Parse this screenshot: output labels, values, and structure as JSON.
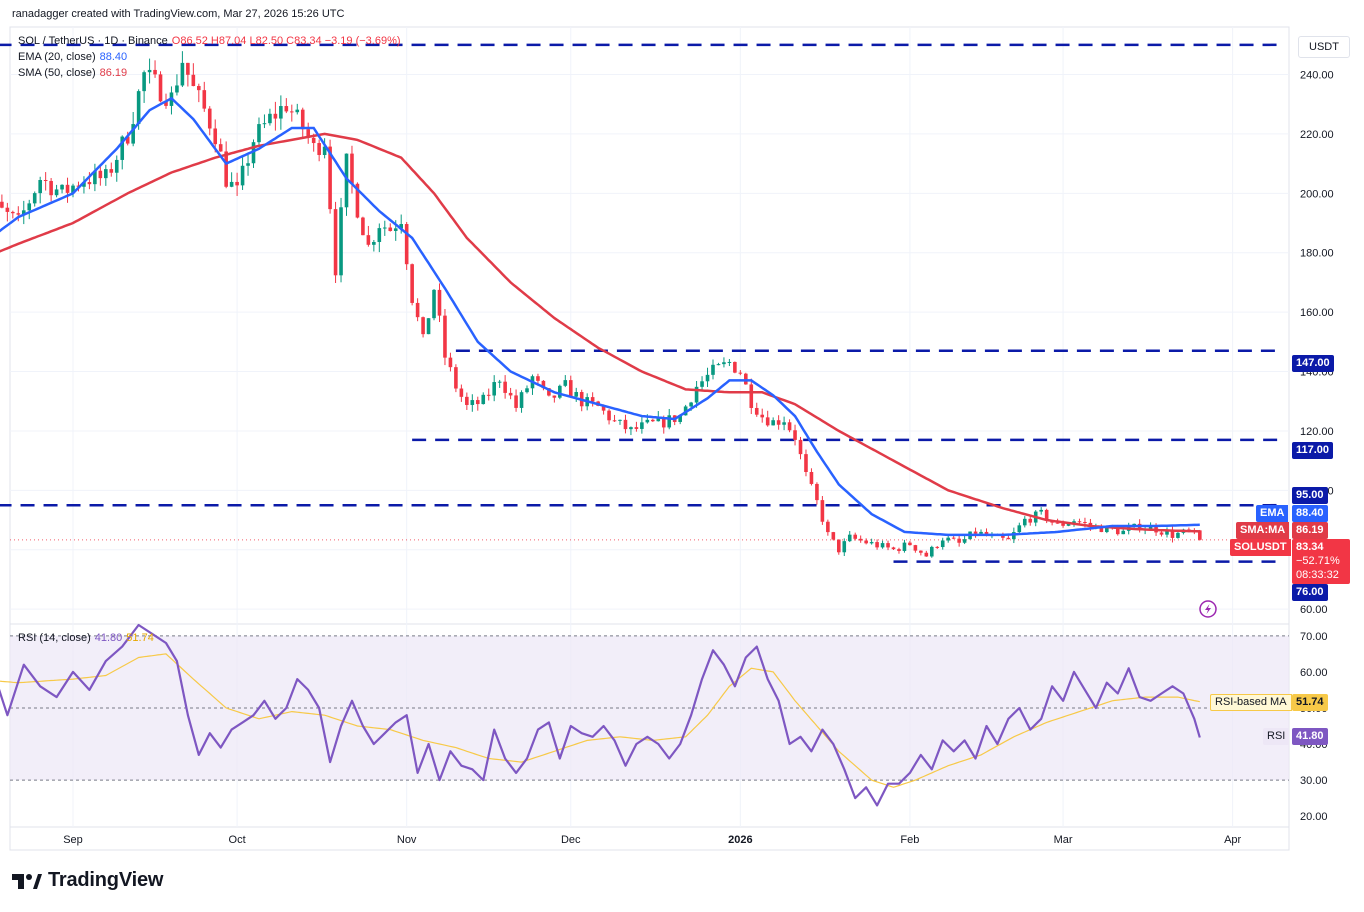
{
  "header": {
    "created_text": "ranadagger created with TradingView.com, Mar 27, 2026 15:26 UTC"
  },
  "legend": {
    "symbol": "SOL / TetherUS · 1D · Binance",
    "ohlc": "O86.52 H87.04 L82.50 C83.34 −3.19 (−3.69%)",
    "ema_label": "EMA (20, close)",
    "ema_value": "88.40",
    "sma_label": "SMA (50, close)",
    "sma_value": "86.19",
    "rsi_label": "RSI (14, close)",
    "rsi_value": "41.80",
    "rsi_ma_value": "51.74"
  },
  "currency_button": "USDT",
  "price_tags": {
    "p95": "95.00",
    "ema_tag": "EMA",
    "ema_value": "88.40",
    "sma_tag": "SMA:MA",
    "sma_value": "86.19",
    "symbol_tag": "SOLUSDT",
    "last": "83.34",
    "change": "−52.71%",
    "countdown": "08:33:32",
    "p76": "76.00",
    "p117": "117.00",
    "p147": "147.00"
  },
  "rsi_tags": {
    "ma_label": "RSI-based MA",
    "ma_value": "51.74",
    "rsi_label": "RSI",
    "rsi_value": "41.80"
  },
  "footer": {
    "brand": "TradingView"
  },
  "colors": {
    "up": "#089981",
    "down": "#f23645",
    "ema": "#2962ff",
    "sma": "#e03b48",
    "level": "#0b1aa8",
    "rsi": "#7e57c2",
    "rsi_ma": "#f7c948",
    "rsi_band": "#ede7f6"
  },
  "chart_data": [
    {
      "type": "candlestick",
      "title": "SOL / TetherUS · 1D · Binance",
      "y_axis_ticks": [
        60,
        80,
        100,
        120,
        140,
        160,
        180,
        200,
        220,
        240
      ],
      "y_axis_tick_labels": [
        "60.00",
        "80.00",
        "100.00",
        "120.00",
        "140.00",
        "160.00",
        "180.00",
        "200.00",
        "220.00",
        "240.00"
      ],
      "ylim": [
        55,
        256
      ],
      "x_tick_labels": [
        "Sep",
        "Oct",
        "Nov",
        "Dec",
        "2026",
        "Feb",
        "Mar",
        "Apr"
      ],
      "x_tick_days": [
        0,
        30,
        61,
        91,
        122,
        153,
        181,
        212
      ],
      "first_candle_day": -18,
      "last_candle_day": 206,
      "horizontal_levels": [
        250,
        147,
        117,
        95,
        76
      ],
      "level_labels": [
        "147.00",
        "117.00",
        "95.00",
        "76.00"
      ],
      "close_anchors": [
        [
          -18,
          180
        ],
        [
          -14,
          195
        ],
        [
          -10,
          190
        ],
        [
          -6,
          205
        ],
        [
          -2,
          200
        ],
        [
          2,
          205
        ],
        [
          6,
          205
        ],
        [
          10,
          220
        ],
        [
          13,
          240
        ],
        [
          16,
          235
        ],
        [
          18,
          232
        ],
        [
          20,
          245
        ],
        [
          22,
          235
        ],
        [
          24,
          228
        ],
        [
          26,
          220
        ],
        [
          28,
          205
        ],
        [
          30,
          200
        ],
        [
          33,
          218
        ],
        [
          36,
          225
        ],
        [
          39,
          230
        ],
        [
          42,
          222
        ],
        [
          44,
          215
        ],
        [
          46,
          218
        ],
        [
          48,
          175
        ],
        [
          50,
          210
        ],
        [
          52,
          195
        ],
        [
          54,
          182
        ],
        [
          56,
          190
        ],
        [
          58,
          188
        ],
        [
          60,
          192
        ],
        [
          62,
          165
        ],
        [
          64,
          150
        ],
        [
          66,
          168
        ],
        [
          68,
          145
        ],
        [
          70,
          135
        ],
        [
          72,
          128
        ],
        [
          75,
          130
        ],
        [
          78,
          138
        ],
        [
          81,
          128
        ],
        [
          84,
          138
        ],
        [
          87,
          130
        ],
        [
          90,
          135
        ],
        [
          93,
          130
        ],
        [
          96,
          128
        ],
        [
          99,
          123
        ],
        [
          102,
          120
        ],
        [
          105,
          122
        ],
        [
          108,
          123
        ],
        [
          111,
          125
        ],
        [
          114,
          135
        ],
        [
          117,
          140
        ],
        [
          120,
          143
        ],
        [
          122,
          140
        ],
        [
          124,
          130
        ],
        [
          126,
          125
        ],
        [
          128,
          123
        ],
        [
          130,
          124
        ],
        [
          132,
          118
        ],
        [
          134,
          105
        ],
        [
          136,
          96
        ],
        [
          138,
          85
        ],
        [
          140,
          80
        ],
        [
          142,
          84
        ],
        [
          146,
          82
        ],
        [
          150,
          80
        ],
        [
          153,
          82
        ],
        [
          156,
          78
        ],
        [
          159,
          84
        ],
        [
          162,
          82
        ],
        [
          165,
          86
        ],
        [
          168,
          84
        ],
        [
          171,
          83
        ],
        [
          174,
          90
        ],
        [
          177,
          92
        ],
        [
          180,
          88
        ],
        [
          183,
          90
        ],
        [
          186,
          88
        ],
        [
          189,
          87
        ],
        [
          192,
          86
        ],
        [
          195,
          88
        ],
        [
          198,
          87
        ],
        [
          201,
          85
        ],
        [
          204,
          86
        ],
        [
          206,
          83.34
        ]
      ],
      "ema_anchors": [
        [
          -18,
          181
        ],
        [
          -10,
          192
        ],
        [
          0,
          200
        ],
        [
          8,
          215
        ],
        [
          14,
          228
        ],
        [
          18,
          232
        ],
        [
          22,
          225
        ],
        [
          28,
          210
        ],
        [
          34,
          215
        ],
        [
          40,
          222
        ],
        [
          44,
          222
        ],
        [
          50,
          205
        ],
        [
          56,
          194
        ],
        [
          62,
          185
        ],
        [
          68,
          168
        ],
        [
          74,
          150
        ],
        [
          80,
          140
        ],
        [
          88,
          133
        ],
        [
          96,
          129
        ],
        [
          104,
          125
        ],
        [
          110,
          124
        ],
        [
          116,
          131
        ],
        [
          120,
          137
        ],
        [
          124,
          137
        ],
        [
          128,
          132
        ],
        [
          132,
          125
        ],
        [
          136,
          113
        ],
        [
          140,
          102
        ],
        [
          146,
          92
        ],
        [
          152,
          86
        ],
        [
          160,
          85
        ],
        [
          170,
          85
        ],
        [
          180,
          86
        ],
        [
          190,
          88
        ],
        [
          198,
          88
        ],
        [
          206,
          88.4
        ]
      ],
      "sma_anchors": [
        [
          -18,
          177
        ],
        [
          -10,
          183
        ],
        [
          0,
          190
        ],
        [
          10,
          200
        ],
        [
          18,
          207
        ],
        [
          26,
          212
        ],
        [
          34,
          216
        ],
        [
          40,
          218
        ],
        [
          46,
          220
        ],
        [
          52,
          218
        ],
        [
          60,
          212
        ],
        [
          66,
          200
        ],
        [
          72,
          185
        ],
        [
          80,
          170
        ],
        [
          88,
          158
        ],
        [
          96,
          148
        ],
        [
          104,
          140
        ],
        [
          112,
          134
        ],
        [
          120,
          133
        ],
        [
          126,
          133
        ],
        [
          132,
          129
        ],
        [
          140,
          120
        ],
        [
          150,
          110
        ],
        [
          160,
          100
        ],
        [
          170,
          94
        ],
        [
          178,
          90
        ],
        [
          186,
          88
        ],
        [
          194,
          87
        ],
        [
          200,
          86.5
        ],
        [
          206,
          86.19
        ]
      ]
    },
    {
      "type": "line",
      "title": "RSI (14, close)",
      "series": [
        {
          "name": "RSI",
          "last_value": 41.8
        },
        {
          "name": "RSI-based MA",
          "last_value": 51.74
        }
      ],
      "y_axis_ticks": [
        20,
        30,
        40,
        50,
        60,
        70
      ],
      "y_axis_tick_labels": [
        "20.00",
        "30.00",
        "40.00",
        "50.00",
        "60.00",
        "70.00"
      ],
      "ylim": [
        17,
        73
      ],
      "band": [
        30,
        70
      ],
      "midline": 50,
      "rsi_anchors": [
        [
          -18,
          55
        ],
        [
          -15,
          62
        ],
        [
          -12,
          48
        ],
        [
          -9,
          62
        ],
        [
          -6,
          56
        ],
        [
          -3,
          53
        ],
        [
          0,
          60
        ],
        [
          3,
          55
        ],
        [
          6,
          63
        ],
        [
          9,
          67
        ],
        [
          12,
          73
        ],
        [
          15,
          70
        ],
        [
          17,
          68
        ],
        [
          19,
          63
        ],
        [
          21,
          48
        ],
        [
          23,
          37
        ],
        [
          25,
          43
        ],
        [
          27,
          39
        ],
        [
          29,
          44
        ],
        [
          31,
          46
        ],
        [
          33,
          48
        ],
        [
          35,
          52
        ],
        [
          37,
          47
        ],
        [
          39,
          50
        ],
        [
          41,
          58
        ],
        [
          43,
          55
        ],
        [
          45,
          50
        ],
        [
          47,
          35
        ],
        [
          49,
          45
        ],
        [
          51,
          52
        ],
        [
          53,
          45
        ],
        [
          55,
          40
        ],
        [
          57,
          43
        ],
        [
          59,
          46
        ],
        [
          61,
          48
        ],
        [
          63,
          32
        ],
        [
          65,
          40
        ],
        [
          67,
          30
        ],
        [
          69,
          38
        ],
        [
          71,
          34
        ],
        [
          73,
          33
        ],
        [
          75,
          30
        ],
        [
          77,
          44
        ],
        [
          79,
          36
        ],
        [
          81,
          32
        ],
        [
          83,
          36
        ],
        [
          85,
          44
        ],
        [
          87,
          46
        ],
        [
          89,
          36
        ],
        [
          91,
          45
        ],
        [
          93,
          43
        ],
        [
          95,
          42
        ],
        [
          97,
          45
        ],
        [
          99,
          41
        ],
        [
          101,
          34
        ],
        [
          103,
          40
        ],
        [
          105,
          42
        ],
        [
          107,
          40
        ],
        [
          109,
          36
        ],
        [
          111,
          40
        ],
        [
          113,
          48
        ],
        [
          115,
          58
        ],
        [
          117,
          66
        ],
        [
          119,
          62
        ],
        [
          121,
          56
        ],
        [
          123,
          64
        ],
        [
          125,
          67
        ],
        [
          127,
          58
        ],
        [
          129,
          52
        ],
        [
          131,
          40
        ],
        [
          133,
          42
        ],
        [
          135,
          38
        ],
        [
          137,
          44
        ],
        [
          139,
          40
        ],
        [
          141,
          33
        ],
        [
          143,
          25
        ],
        [
          145,
          28
        ],
        [
          147,
          23
        ],
        [
          149,
          29
        ],
        [
          151,
          29
        ],
        [
          153,
          32
        ],
        [
          155,
          37
        ],
        [
          157,
          33
        ],
        [
          159,
          41
        ],
        [
          161,
          38
        ],
        [
          163,
          41
        ],
        [
          165,
          36
        ],
        [
          167,
          45
        ],
        [
          169,
          40
        ],
        [
          171,
          47
        ],
        [
          173,
          50
        ],
        [
          175,
          44
        ],
        [
          177,
          47
        ],
        [
          179,
          56
        ],
        [
          181,
          52
        ],
        [
          183,
          60
        ],
        [
          185,
          55
        ],
        [
          187,
          50
        ],
        [
          189,
          57
        ],
        [
          191,
          54
        ],
        [
          193,
          61
        ],
        [
          195,
          53
        ],
        [
          197,
          52
        ],
        [
          199,
          54
        ],
        [
          201,
          56
        ],
        [
          203,
          54
        ],
        [
          205,
          47
        ],
        [
          206,
          41.8
        ]
      ],
      "rsi_ma_anchors": [
        [
          -18,
          58
        ],
        [
          -10,
          57
        ],
        [
          0,
          58
        ],
        [
          6,
          59
        ],
        [
          12,
          64
        ],
        [
          17,
          65
        ],
        [
          22,
          58
        ],
        [
          28,
          50
        ],
        [
          34,
          47
        ],
        [
          40,
          49
        ],
        [
          46,
          48
        ],
        [
          52,
          45
        ],
        [
          58,
          44
        ],
        [
          64,
          41
        ],
        [
          70,
          39
        ],
        [
          76,
          36
        ],
        [
          82,
          35
        ],
        [
          88,
          38
        ],
        [
          94,
          41
        ],
        [
          100,
          42
        ],
        [
          106,
          41
        ],
        [
          112,
          42
        ],
        [
          116,
          48
        ],
        [
          120,
          56
        ],
        [
          124,
          61
        ],
        [
          128,
          60
        ],
        [
          132,
          52
        ],
        [
          136,
          45
        ],
        [
          140,
          38
        ],
        [
          146,
          30
        ],
        [
          150,
          28
        ],
        [
          154,
          30
        ],
        [
          160,
          34
        ],
        [
          166,
          37
        ],
        [
          172,
          42
        ],
        [
          178,
          46
        ],
        [
          184,
          49
        ],
        [
          190,
          52
        ],
        [
          196,
          53
        ],
        [
          202,
          53
        ],
        [
          206,
          51.74
        ]
      ]
    }
  ]
}
